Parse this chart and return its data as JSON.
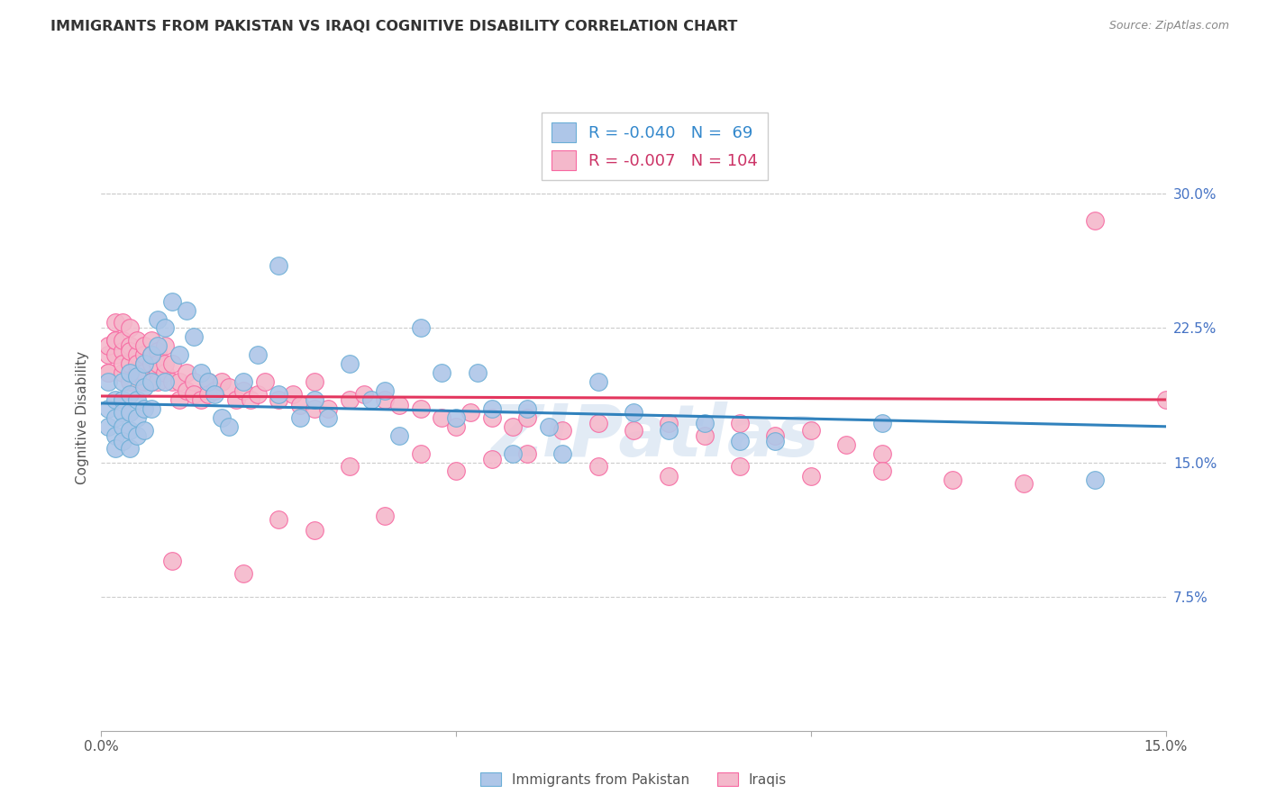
{
  "title": "IMMIGRANTS FROM PAKISTAN VS IRAQI COGNITIVE DISABILITY CORRELATION CHART",
  "source": "Source: ZipAtlas.com",
  "ylabel": "Cognitive Disability",
  "right_yticks": [
    "30.0%",
    "22.5%",
    "15.0%",
    "7.5%"
  ],
  "right_ytick_vals": [
    0.3,
    0.225,
    0.15,
    0.075
  ],
  "legend_blue_label": "R = -0.040   N =  69",
  "legend_pink_label": "R = -0.007   N = 104",
  "blue_color": "#aec6e8",
  "pink_color": "#f4b8cb",
  "blue_edge_color": "#6baed6",
  "pink_edge_color": "#f768a1",
  "blue_line_color": "#3182bd",
  "pink_line_color": "#e3365e",
  "watermark": "ZIPatlas",
  "xlim": [
    0.0,
    0.15
  ],
  "ylim": [
    0.0,
    0.35
  ],
  "blue_line_x0": 0.0,
  "blue_line_x1": 0.15,
  "blue_line_y0": 0.183,
  "blue_line_y1": 0.17,
  "pink_line_x0": 0.0,
  "pink_line_x1": 0.15,
  "pink_line_y0": 0.187,
  "pink_line_y1": 0.185,
  "blue_scatter_x": [
    0.001,
    0.001,
    0.001,
    0.002,
    0.002,
    0.002,
    0.002,
    0.003,
    0.003,
    0.003,
    0.003,
    0.003,
    0.004,
    0.004,
    0.004,
    0.004,
    0.004,
    0.005,
    0.005,
    0.005,
    0.005,
    0.006,
    0.006,
    0.006,
    0.006,
    0.007,
    0.007,
    0.007,
    0.008,
    0.008,
    0.009,
    0.009,
    0.01,
    0.011,
    0.012,
    0.013,
    0.014,
    0.015,
    0.016,
    0.017,
    0.018,
    0.02,
    0.022,
    0.025,
    0.025,
    0.028,
    0.03,
    0.032,
    0.035,
    0.038,
    0.04,
    0.042,
    0.045,
    0.048,
    0.05,
    0.053,
    0.055,
    0.058,
    0.06,
    0.063,
    0.065,
    0.07,
    0.075,
    0.08,
    0.085,
    0.09,
    0.095,
    0.11,
    0.14
  ],
  "blue_scatter_y": [
    0.195,
    0.18,
    0.17,
    0.185,
    0.175,
    0.165,
    0.158,
    0.195,
    0.185,
    0.178,
    0.17,
    0.162,
    0.2,
    0.188,
    0.178,
    0.168,
    0.158,
    0.198,
    0.185,
    0.175,
    0.165,
    0.205,
    0.192,
    0.18,
    0.168,
    0.21,
    0.195,
    0.18,
    0.23,
    0.215,
    0.225,
    0.195,
    0.24,
    0.21,
    0.235,
    0.22,
    0.2,
    0.195,
    0.188,
    0.175,
    0.17,
    0.195,
    0.21,
    0.26,
    0.188,
    0.175,
    0.185,
    0.175,
    0.205,
    0.185,
    0.19,
    0.165,
    0.225,
    0.2,
    0.175,
    0.2,
    0.18,
    0.155,
    0.18,
    0.17,
    0.155,
    0.195,
    0.178,
    0.168,
    0.172,
    0.162,
    0.162,
    0.172,
    0.14
  ],
  "pink_scatter_x": [
    0.001,
    0.001,
    0.001,
    0.001,
    0.002,
    0.002,
    0.002,
    0.002,
    0.003,
    0.003,
    0.003,
    0.003,
    0.003,
    0.004,
    0.004,
    0.004,
    0.004,
    0.004,
    0.005,
    0.005,
    0.005,
    0.005,
    0.006,
    0.006,
    0.006,
    0.006,
    0.006,
    0.007,
    0.007,
    0.007,
    0.007,
    0.007,
    0.008,
    0.008,
    0.008,
    0.008,
    0.009,
    0.009,
    0.009,
    0.01,
    0.01,
    0.011,
    0.011,
    0.012,
    0.012,
    0.013,
    0.013,
    0.014,
    0.015,
    0.015,
    0.016,
    0.017,
    0.018,
    0.019,
    0.02,
    0.021,
    0.022,
    0.023,
    0.025,
    0.027,
    0.028,
    0.03,
    0.03,
    0.032,
    0.035,
    0.037,
    0.04,
    0.042,
    0.045,
    0.048,
    0.05,
    0.052,
    0.055,
    0.058,
    0.06,
    0.065,
    0.07,
    0.075,
    0.08,
    0.085,
    0.09,
    0.095,
    0.1,
    0.105,
    0.11,
    0.025,
    0.03,
    0.035,
    0.04,
    0.045,
    0.05,
    0.055,
    0.06,
    0.07,
    0.08,
    0.09,
    0.1,
    0.11,
    0.12,
    0.13,
    0.14,
    0.15,
    0.01,
    0.02
  ],
  "pink_scatter_y": [
    0.21,
    0.2,
    0.215,
    0.2,
    0.21,
    0.218,
    0.228,
    0.218,
    0.2,
    0.212,
    0.205,
    0.218,
    0.228,
    0.195,
    0.205,
    0.215,
    0.212,
    0.225,
    0.2,
    0.21,
    0.218,
    0.205,
    0.195,
    0.205,
    0.21,
    0.2,
    0.215,
    0.195,
    0.205,
    0.218,
    0.21,
    0.195,
    0.2,
    0.212,
    0.205,
    0.195,
    0.2,
    0.205,
    0.215,
    0.195,
    0.205,
    0.195,
    0.185,
    0.19,
    0.2,
    0.195,
    0.188,
    0.185,
    0.195,
    0.188,
    0.19,
    0.195,
    0.192,
    0.185,
    0.19,
    0.185,
    0.188,
    0.195,
    0.185,
    0.188,
    0.182,
    0.18,
    0.195,
    0.18,
    0.185,
    0.188,
    0.185,
    0.182,
    0.18,
    0.175,
    0.17,
    0.178,
    0.175,
    0.17,
    0.175,
    0.168,
    0.172,
    0.168,
    0.172,
    0.165,
    0.172,
    0.165,
    0.168,
    0.16,
    0.155,
    0.118,
    0.112,
    0.148,
    0.12,
    0.155,
    0.145,
    0.152,
    0.155,
    0.148,
    0.142,
    0.148,
    0.142,
    0.145,
    0.14,
    0.138,
    0.285,
    0.185,
    0.095,
    0.088
  ]
}
